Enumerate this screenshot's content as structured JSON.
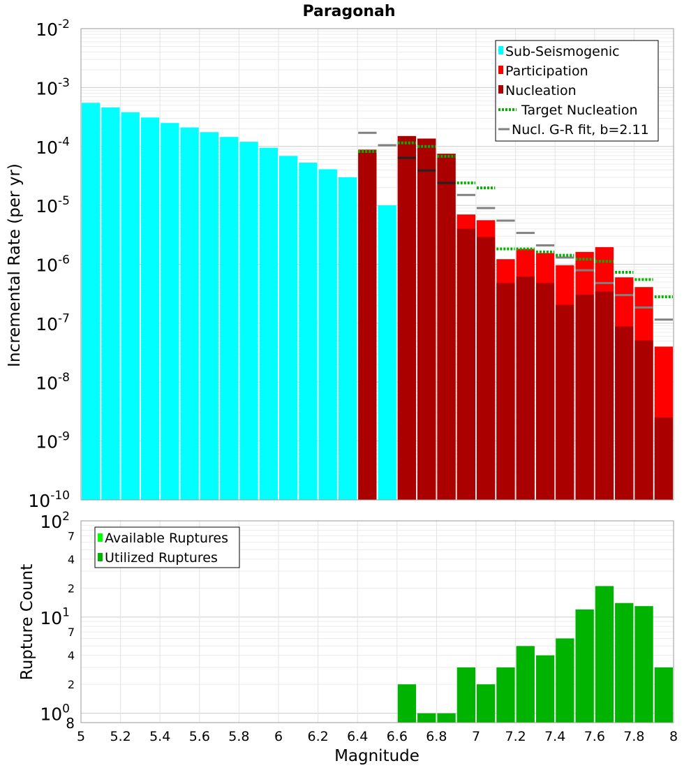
{
  "chart_data": [
    {
      "type": "bar",
      "title": "Paragonah",
      "xlabel": "",
      "ylabel": "Incremental Rate (per yr)",
      "yscale": "log",
      "xlim": [
        5,
        8
      ],
      "ylim": [
        1e-10,
        0.01
      ],
      "y_tick_labels": [
        "10^-10",
        "10^-9",
        "10^-8",
        "10^-7",
        "10^-6",
        "10^-5",
        "10^-4",
        "10^-3",
        "10^-2"
      ],
      "bin_width": 0.1,
      "legend_position": "top-right",
      "legend": [
        {
          "label": "Sub-Seismogenic",
          "style": "box",
          "color": "#00ffff"
        },
        {
          "label": "Participation",
          "style": "box",
          "color": "#ff0000"
        },
        {
          "label": "Nucleation",
          "style": "box",
          "color": "#aa0000"
        },
        {
          "label": " Target Nucleation",
          "style": "dotted",
          "color": "#00b300"
        },
        {
          "label": "Nucl. G-R fit, b=2.11",
          "style": "line",
          "color": "#808080"
        }
      ],
      "series": [
        {
          "name": "Sub-Seismogenic",
          "color": "#00ffff",
          "x": [
            5.05,
            5.15,
            5.25,
            5.35,
            5.45,
            5.55,
            5.65,
            5.75,
            5.85,
            5.95,
            6.05,
            6.15,
            6.25,
            6.35,
            6.55
          ],
          "values": [
            0.00055,
            0.00046,
            0.00038,
            0.00031,
            0.00025,
            0.00021,
            0.000175,
            0.000145,
            0.00012,
            9.5e-05,
            6.9e-05,
            5.3e-05,
            4.1e-05,
            3e-05,
            1e-05
          ]
        },
        {
          "name": "Participation",
          "color": "#ff0000",
          "x": [
            6.45,
            6.65,
            6.75,
            6.85,
            6.95,
            7.05,
            7.15,
            7.25,
            7.35,
            7.45,
            7.55,
            7.65,
            7.75,
            7.85,
            7.95
          ],
          "values": [
            8.8e-05,
            0.00015,
            0.000136,
            7.5e-05,
            7e-06,
            5.6e-06,
            1.22e-06,
            1.82e-06,
            1.55e-06,
            9.6e-07,
            1.62e-06,
            1.95e-06,
            6e-07,
            4.1e-07,
            4e-08
          ]
        },
        {
          "name": "Nucleation",
          "color": "#aa0000",
          "x": [
            6.45,
            6.65,
            6.75,
            6.85,
            6.95,
            7.05,
            7.15,
            7.25,
            7.35,
            7.45,
            7.55,
            7.65,
            7.75,
            7.85,
            7.95
          ],
          "values": [
            8.8e-05,
            0.00015,
            0.000136,
            7.5e-05,
            4e-06,
            2.9e-06,
            4.8e-07,
            6.2e-07,
            4.8e-07,
            2.05e-07,
            3.05e-07,
            3.45e-07,
            8.8e-08,
            5.1e-08,
            2.5e-09
          ]
        },
        {
          "name": " Target Nucleation",
          "color": "#00b300",
          "x": [
            6.45,
            6.65,
            6.75,
            6.85,
            6.95,
            7.05,
            7.15,
            7.25,
            7.35,
            7.45,
            7.55,
            7.65,
            7.75,
            7.85,
            7.95
          ],
          "values": [
            8.2e-05,
            0.000115,
            0.0001,
            6.8e-05,
            2.4e-05,
            1.98e-05,
            1.82e-06,
            1.82e-06,
            1.62e-06,
            1.42e-06,
            1.22e-06,
            1.12e-06,
            7.3e-07,
            5.5e-07,
            2.8e-07
          ]
        },
        {
          "name": "Nucl. G-R fit, b=2.11",
          "color": "#808080",
          "x": [
            6.45,
            6.55,
            6.65,
            6.75,
            6.85,
            6.95,
            7.05,
            7.15,
            7.25,
            7.35,
            7.45,
            7.55,
            7.65,
            7.75,
            7.85,
            7.95
          ],
          "values": [
            0.00017,
            0.000105,
            6.4e-05,
            3.9e-05,
            2.4e-05,
            1.5e-05,
            9e-06,
            5.5e-06,
            3.4e-06,
            2.1e-06,
            1.3e-06,
            7.9e-07,
            4.8e-07,
            3e-07,
            1.85e-07,
            1.15e-07
          ]
        }
      ]
    },
    {
      "type": "bar",
      "title": "",
      "xlabel": "Magnitude",
      "ylabel": "Rupture Count",
      "yscale": "log",
      "xlim": [
        5,
        8
      ],
      "ylim": [
        0.8,
        100
      ],
      "x_tick_labels": [
        "5",
        "5.2",
        "5.4",
        "5.6",
        "5.8",
        "6",
        "6.2",
        "6.4",
        "6.6",
        "6.8",
        "7",
        "7.2",
        "7.4",
        "7.6",
        "7.8",
        "8"
      ],
      "y_major_labels": [
        "10^0",
        "10^1",
        "10^2"
      ],
      "y_minor_labels": [
        "2",
        "4",
        "7",
        "2",
        "4",
        "7"
      ],
      "y_bottom_label": "8",
      "legend_position": "top-left",
      "legend": [
        {
          "label": "Available Ruptures",
          "style": "box",
          "color": "#00ff00"
        },
        {
          "label": "Utilized Ruptures",
          "style": "box",
          "color": "#00b300"
        }
      ],
      "series": [
        {
          "name": "Utilized Ruptures",
          "color": "#00b300",
          "x": [
            6.65,
            6.75,
            6.85,
            6.95,
            7.05,
            7.15,
            7.25,
            7.35,
            7.45,
            7.55,
            7.65,
            7.75,
            7.85,
            7.95
          ],
          "values": [
            2,
            1,
            1,
            3,
            2,
            3,
            5,
            4,
            6,
            12,
            21,
            14,
            13,
            3
          ]
        }
      ]
    }
  ]
}
